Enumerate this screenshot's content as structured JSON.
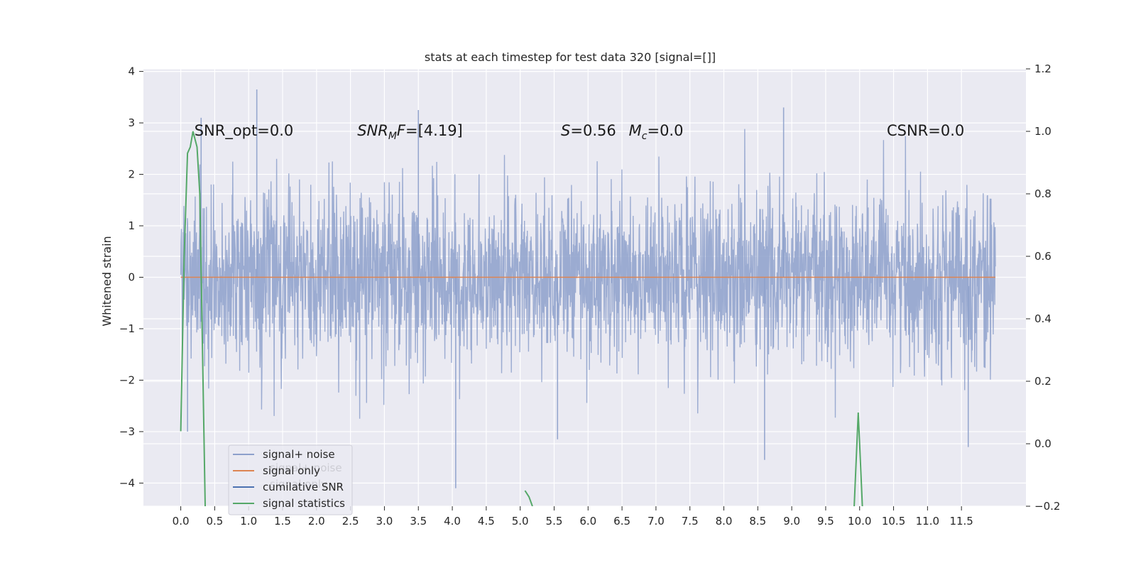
{
  "chart_data": {
    "type": "line",
    "title": "stats at each timestep for test data 320 [signal=[]]",
    "ylabel": "Whitened strain",
    "y2label": "",
    "xlim": [
      -0.55,
      12.45
    ],
    "ylim": [
      -4.45,
      4.05
    ],
    "y2lim": [
      -0.2,
      1.2
    ],
    "xticks": [
      "0.0",
      "0.5",
      "1.0",
      "1.5",
      "2.0",
      "2.5",
      "3.0",
      "3.5",
      "4.0",
      "4.5",
      "5.0",
      "5.5",
      "6.0",
      "6.5",
      "7.0",
      "7.5",
      "8.0",
      "8.5",
      "9.0",
      "9.5",
      "10.0",
      "10.5",
      "11.0",
      "11.5"
    ],
    "xtick_values": [
      0,
      0.5,
      1,
      1.5,
      2,
      2.5,
      3,
      3.5,
      4,
      4.5,
      5,
      5.5,
      6,
      6.5,
      7,
      7.5,
      8,
      8.5,
      9,
      9.5,
      10,
      10.5,
      11,
      11.5
    ],
    "yticks": [
      -4,
      -3,
      -2,
      -1,
      0,
      1,
      2,
      3,
      4
    ],
    "ytick_labels": [
      "−4",
      "−3",
      "−2",
      "−1",
      "0",
      "1",
      "2",
      "3",
      "4"
    ],
    "y2ticks": [
      -0.2,
      0.0,
      0.2,
      0.4,
      0.6,
      0.8,
      1.0,
      1.2
    ],
    "y2tick_labels": [
      "−0.2",
      "0.0",
      "0.2",
      "0.4",
      "0.6",
      "0.8",
      "1.0",
      "1.2"
    ],
    "grid": true,
    "legend_position": "lower-left",
    "series": [
      {
        "name": "signal+ noise",
        "axis": "left",
        "color": "#8da0cb",
        "kind": "noise",
        "x_range": [
          0,
          12
        ],
        "sigma": 0.82,
        "peaks": [
          [
            1.12,
            3.65
          ],
          [
            0.3,
            3.1
          ],
          [
            3.5,
            3.25
          ],
          [
            8.88,
            3.3
          ],
          [
            4.05,
            -4.1
          ],
          [
            8.6,
            -3.55
          ],
          [
            11.6,
            -3.3
          ],
          [
            5.55,
            -3.15
          ],
          [
            0.1,
            -3.0
          ]
        ]
      },
      {
        "name": "signal only",
        "axis": "left",
        "color": "#dd8452",
        "x": [
          0,
          12
        ],
        "y": [
          0,
          0
        ]
      },
      {
        "name": "cumilative SNR",
        "axis": "left",
        "color": "#4c72b0",
        "x": [],
        "y": []
      },
      {
        "name": "signal statistics",
        "axis": "right",
        "color": "#55a868",
        "segments": [
          {
            "x": [
              0.0,
              0.05,
              0.1,
              0.14,
              0.18,
              0.24,
              0.28,
              0.36
            ],
            "y": [
              0.04,
              0.6,
              0.93,
              0.95,
              1.0,
              0.95,
              0.8,
              -0.2
            ]
          },
          {
            "x": [
              5.07,
              5.13,
              5.18
            ],
            "y": [
              -0.15,
              -0.17,
              -0.2
            ]
          },
          {
            "x": [
              9.92,
              9.98,
              10.04
            ],
            "y": [
              -0.2,
              0.1,
              -0.2
            ]
          }
        ]
      }
    ],
    "annotations": [
      {
        "x": 0.2,
        "y": 2.75,
        "text": "SNR_opt=0.0",
        "kind": "plain"
      },
      {
        "x": 2.6,
        "y": 2.75,
        "kind": "snrmf",
        "main": "SNR",
        "sub": "M",
        "rest": "F=[4.19]"
      },
      {
        "x": 5.6,
        "y": 2.75,
        "kind": "s",
        "main": "S",
        "rest": "=0.56"
      },
      {
        "x": 6.6,
        "y": 2.75,
        "kind": "mc",
        "main": "M",
        "sub": "c",
        "rest": "=0.0"
      },
      {
        "x": 10.4,
        "y": 2.75,
        "text": "CSNR=0.0",
        "kind": "plain"
      }
    ]
  },
  "legend": {
    "items": [
      {
        "label": "signal+ noise",
        "color": "#8da0cb"
      },
      {
        "label": "signal only",
        "color": "#dd8452"
      },
      {
        "label": "cumilative SNR",
        "color": "#4c72b0"
      },
      {
        "label": "signal statistics",
        "color": "#55a868"
      }
    ],
    "ghost_labels": [
      "signal+ noise",
      "signal only"
    ]
  }
}
